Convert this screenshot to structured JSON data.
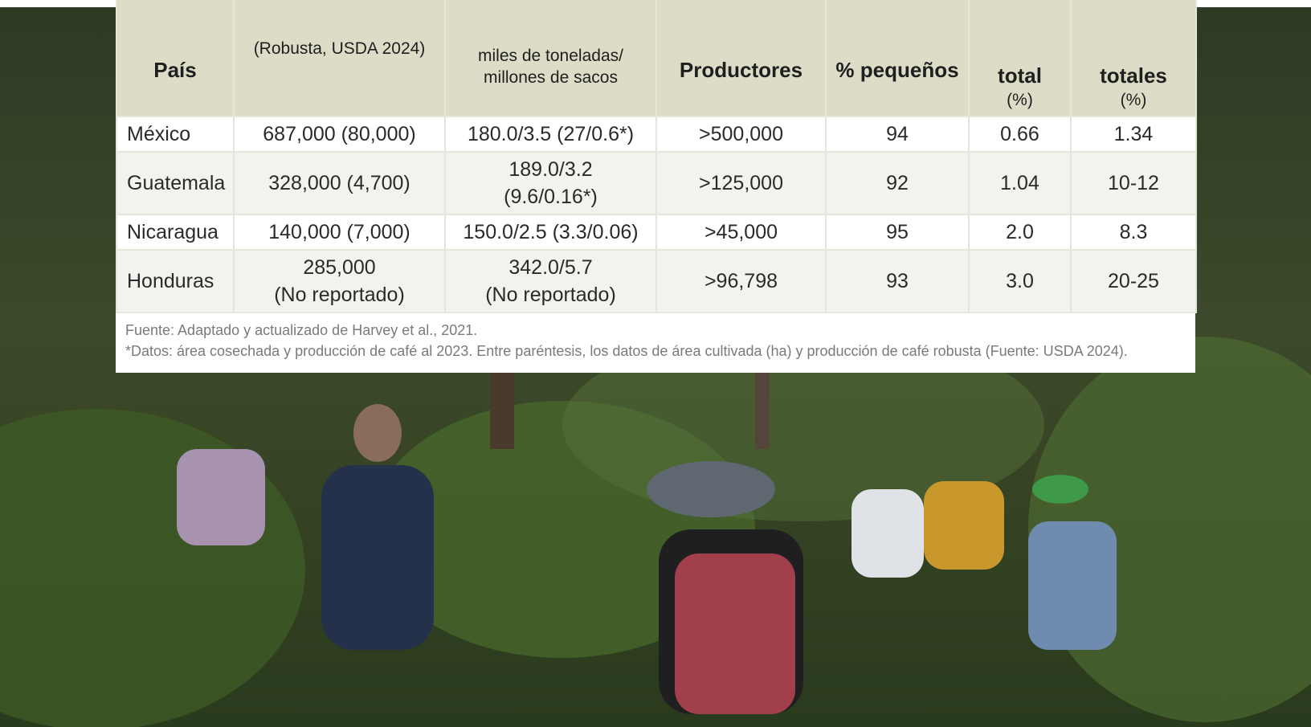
{
  "table": {
    "header": [
      [
        {
          "text": "País",
          "style": "b"
        }
      ],
      [
        {
          "text": "(Robusta, USDA 2024)",
          "style": "s"
        }
      ],
      [
        {
          "text": "miles de toneladas/",
          "style": "s"
        },
        {
          "text": "millones de sacos",
          "style": "s"
        }
      ],
      [
        {
          "text": "Productores",
          "style": "b"
        }
      ],
      [
        {
          "text": "% pequeños",
          "style": "b"
        }
      ],
      [
        {
          "text": "total",
          "style": "b"
        },
        {
          "text": "(%)",
          "style": "s"
        }
      ],
      [
        {
          "text": "totales",
          "style": "b"
        },
        {
          "text": "(%)",
          "style": "s"
        }
      ]
    ],
    "rows": [
      [
        "México",
        "687,000 (80,000)",
        "180.0/3.5 (27/0.6*)",
        ">500,000",
        "94",
        "0.66",
        "1.34"
      ],
      [
        "Guatemala",
        "328,000 (4,700)",
        [
          "189.0/3.2",
          "(9.6/0.16*)"
        ],
        ">125,000",
        "92",
        "1.04",
        "10-12"
      ],
      [
        "Nicaragua",
        "140,000 (7,000)",
        "150.0/2.5 (3.3/0.06)",
        ">45,000",
        "95",
        "2.0",
        "8.3"
      ],
      [
        "Honduras",
        [
          "285,000",
          "(No reportado)"
        ],
        [
          "342.0/5.7",
          "(No reportado)"
        ],
        ">96,798",
        "93",
        "3.0",
        "20-25"
      ]
    ],
    "notes": [
      "Fuente: Adaptado y actualizado de Harvey et al., 2021.",
      "*Datos: área cosechada y producción de café al 2023. Entre paréntesis, los datos de área cultivada (ha) y producción de café robusta (Fuente: USDA 2024)."
    ]
  }
}
